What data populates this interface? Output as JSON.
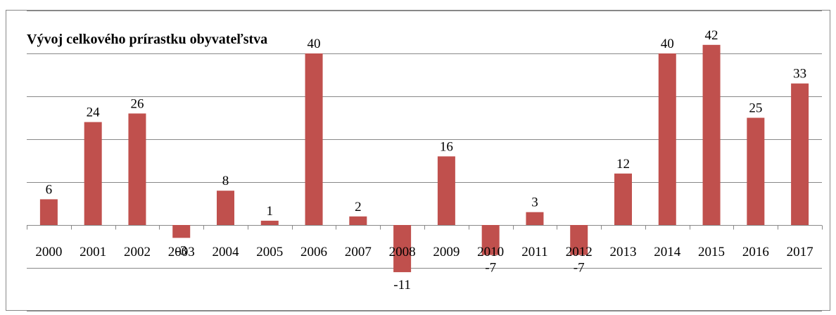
{
  "chart_data": {
    "type": "bar",
    "title": "Vývoj celkového prírastku obyvateľstva",
    "categories": [
      "2000",
      "2001",
      "2002",
      "2003",
      "2004",
      "2005",
      "2006",
      "2007",
      "2008",
      "2009",
      "2010",
      "2011",
      "2012",
      "2013",
      "2014",
      "2015",
      "2016",
      "2017"
    ],
    "values": [
      6,
      24,
      26,
      -3,
      8,
      1,
      40,
      2,
      -11,
      16,
      -7,
      3,
      -7,
      12,
      40,
      42,
      25,
      33
    ],
    "color": "#c0504d",
    "ylim": [
      -20,
      50
    ],
    "yticks": [
      -20,
      -10,
      0,
      10,
      20,
      30,
      40,
      50
    ],
    "grid": true
  }
}
